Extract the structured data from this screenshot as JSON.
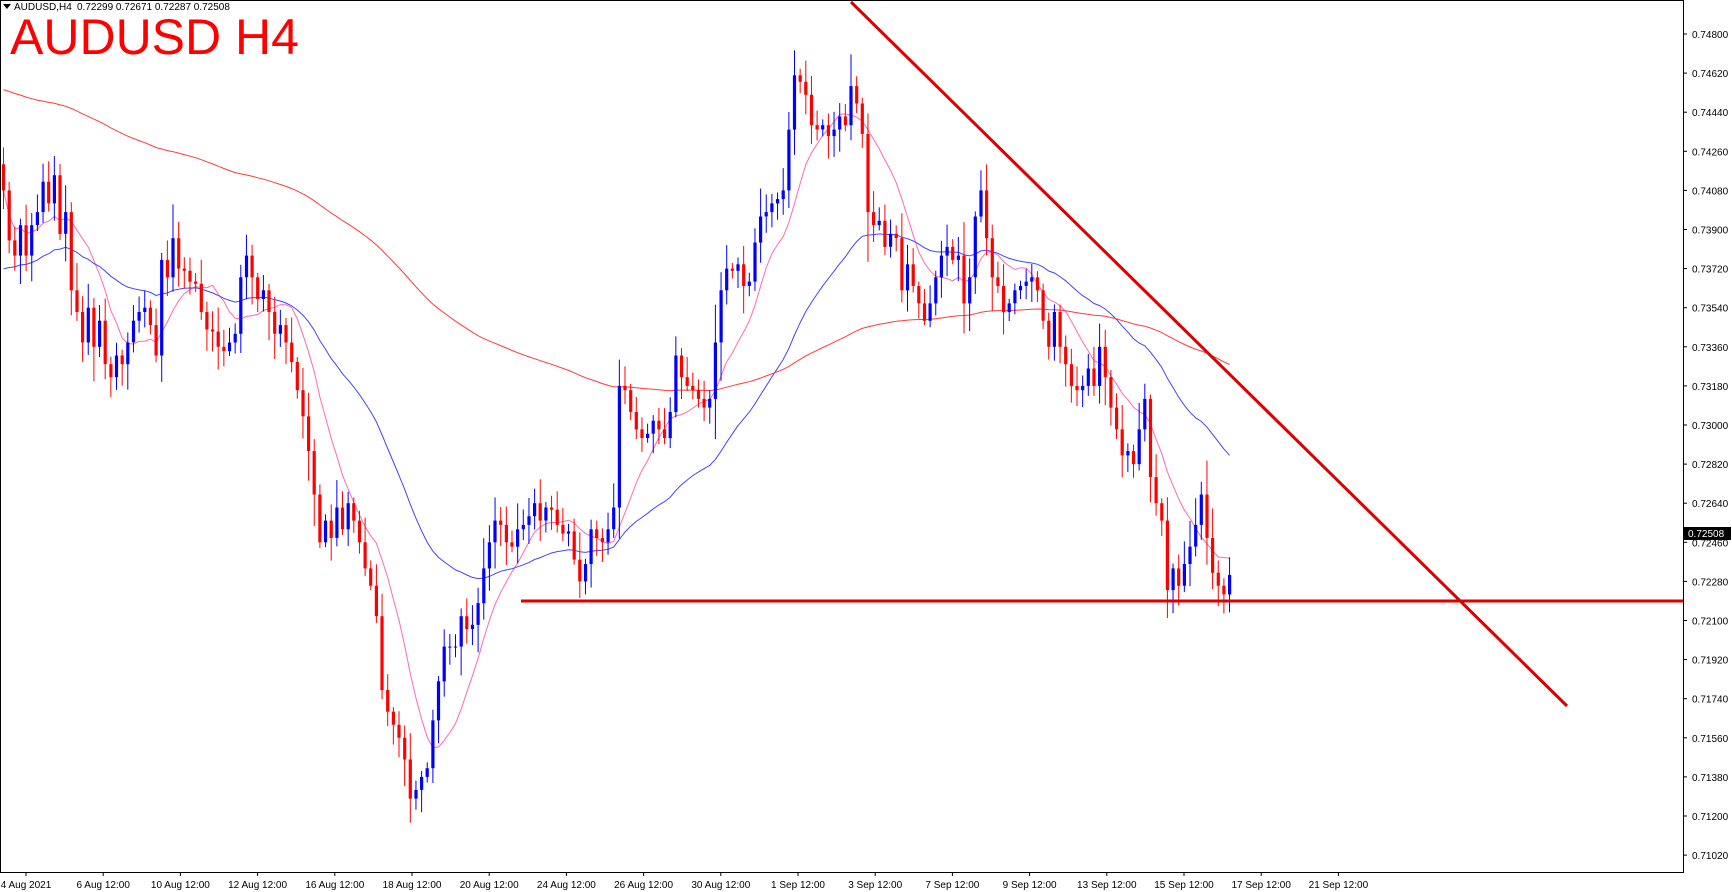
{
  "header": {
    "symbol_label": "AUDUSD,H4",
    "ohlc": "0.72299 0.72671 0.72287 0.72508",
    "title": "AUDUSD H4",
    "current_price": "0.72508"
  },
  "chart_data": {
    "type": "candlestick",
    "title": "AUDUSD H4",
    "ylim": [
      0.70935,
      0.74905
    ],
    "y_tick_labels": [
      "0.74800",
      "0.74620",
      "0.74440",
      "0.74260",
      "0.74080",
      "0.73900",
      "0.73720",
      "0.73540",
      "0.73360",
      "0.73180",
      "0.73000",
      "0.72820",
      "0.72640",
      "0.72460",
      "0.72280",
      "0.72100",
      "0.71920",
      "0.71740",
      "0.71560",
      "0.71380",
      "0.71200",
      "0.71020"
    ],
    "x_tick_labels": [
      "4 Aug 2021",
      "6 Aug 12:00",
      "10 Aug 12:00",
      "12 Aug 12:00",
      "16 Aug 12:00",
      "18 Aug 12:00",
      "20 Aug 12:00",
      "24 Aug 12:00",
      "26 Aug 12:00",
      "30 Aug 12:00",
      "1 Sep 12:00",
      "3 Sep 12:00",
      "7 Sep 12:00",
      "9 Sep 12:00",
      "13 Sep 12:00",
      "15 Sep 12:00",
      "17 Sep 12:00",
      "21 Sep 12:00"
    ],
    "grid": false,
    "colors": {
      "bull": "#0000ff",
      "bear": "#ff0000",
      "ma_fast": "#ff69b4",
      "ma_mid": "#4444ff",
      "ma_slow": "#ff3b3b",
      "annotation": "#dd0000"
    },
    "closes": [
      0.7408,
      0.7385,
      0.7378,
      0.7392,
      0.7378,
      0.7392,
      0.7398,
      0.7412,
      0.7402,
      0.7415,
      0.7388,
      0.7398,
      0.7362,
      0.7352,
      0.7338,
      0.7354,
      0.7336,
      0.7348,
      0.7328,
      0.7322,
      0.7332,
      0.7328,
      0.7338,
      0.7348,
      0.7352,
      0.7354,
      0.7346,
      0.7332,
      0.7376,
      0.7368,
      0.7386,
      0.7372,
      0.7371,
      0.7366,
      0.7365,
      0.7352,
      0.7344,
      0.7343,
      0.7336,
      0.7334,
      0.7338,
      0.7342,
      0.7368,
      0.7378,
      0.7368,
      0.7358,
      0.7362,
      0.7352,
      0.7342,
      0.7346,
      0.7338,
      0.7329,
      0.7316,
      0.7304,
      0.7288,
      0.7268,
      0.7246,
      0.7256,
      0.7248,
      0.7262,
      0.7252,
      0.7264,
      0.7256,
      0.7246,
      0.7234,
      0.7226,
      0.7212,
      0.7178,
      0.7168,
      0.7162,
      0.7156,
      0.7146,
      0.7128,
      0.7132,
      0.7138,
      0.7142,
      0.7164,
      0.7182,
      0.7198,
      0.7198,
      0.7198,
      0.7212,
      0.7206,
      0.7208,
      0.7218,
      0.7234,
      0.7246,
      0.7256,
      0.7254,
      0.7246,
      0.7244,
      0.7252,
      0.7254,
      0.7258,
      0.7264,
      0.7256,
      0.7262,
      0.7261,
      0.7254,
      0.725,
      0.7251,
      0.7238,
      0.7228,
      0.7236,
      0.7252,
      0.7248,
      0.7246,
      0.7252,
      0.7262,
      0.7318,
      0.7316,
      0.7306,
      0.7298,
      0.7294,
      0.7296,
      0.7302,
      0.7298,
      0.7294,
      0.7306,
      0.7332,
      0.7322,
      0.7318,
      0.7316,
      0.7312,
      0.7308,
      0.7312,
      0.7338,
      0.7362,
      0.7372,
      0.7371,
      0.7374,
      0.7364,
      0.7366,
      0.7384,
      0.7396,
      0.7398,
      0.7402,
      0.7404,
      0.7408,
      0.7436,
      0.7461,
      0.7458,
      0.7452,
      0.7438,
      0.7436,
      0.7438,
      0.7433,
      0.7436,
      0.7442,
      0.7438,
      0.7456,
      0.7448,
      0.7434,
      0.7398,
      0.7392,
      0.7394,
      0.7382,
      0.7388,
      0.7386,
      0.7362,
      0.7374,
      0.7364,
      0.7356,
      0.7348,
      0.7356,
      0.7368,
      0.7378,
      0.7382,
      0.7376,
      0.7378,
      0.7356,
      0.7368,
      0.7396,
      0.7408,
      0.7386,
      0.7368,
      0.7364,
      0.7352,
      0.7356,
      0.7362,
      0.7364,
      0.7366,
      0.7368,
      0.7362,
      0.7348,
      0.7336,
      0.7352,
      0.7336,
      0.7328,
      0.7318,
      0.7316,
      0.7318,
      0.7326,
      0.7318,
      0.7336,
      0.7322,
      0.7308,
      0.7298,
      0.7286,
      0.7288,
      0.7282,
      0.7298,
      0.7312,
      0.7276,
      0.7264,
      0.7256,
      0.7224,
      0.7234,
      0.7226,
      0.7236,
      0.7244,
      0.7254,
      0.7268,
      0.7248,
      0.7232,
      0.7226,
      0.7222,
      0.7231
    ]
  }
}
